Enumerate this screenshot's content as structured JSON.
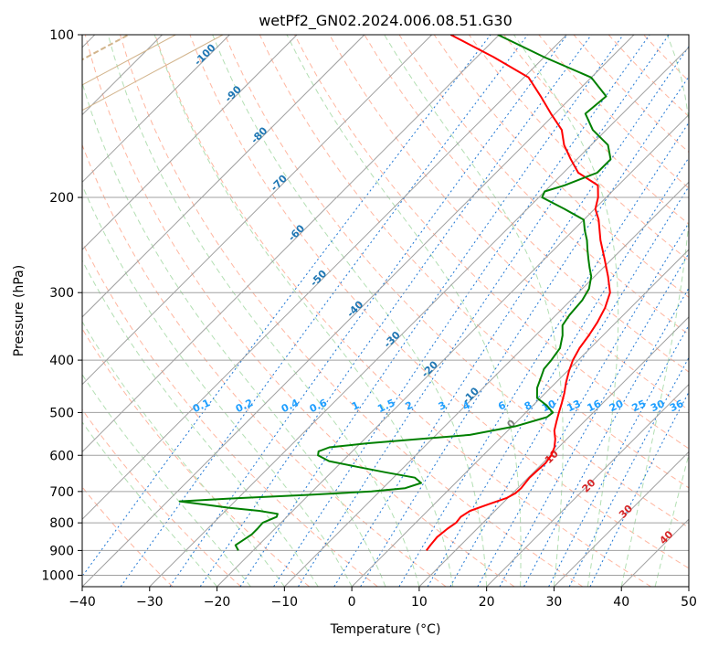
{
  "chart_data": {
    "type": "line",
    "title": "wetPf2_GN02.2024.006.08.51.G30",
    "xlabel": "Temperature (°C)",
    "ylabel": "Pressure (hPa)",
    "xlim": [
      -40,
      50
    ],
    "ylim": [
      1050,
      100
    ],
    "y_scale": "log",
    "skew": true,
    "grid": true,
    "x_ticks": [
      "−40",
      "−30",
      "−20",
      "−10",
      "0",
      "10",
      "20",
      "30",
      "40",
      "50"
    ],
    "y_ticks": [
      "100",
      "200",
      "300",
      "400",
      "500",
      "600",
      "700",
      "800",
      "900",
      "1000"
    ],
    "series": [
      {
        "role": "temperature",
        "color": "#ff0000",
        "points": [
          [
            900,
            5.7
          ],
          [
            880,
            5.5
          ],
          [
            850,
            5.3
          ],
          [
            820,
            5.6
          ],
          [
            800,
            6.0
          ],
          [
            780,
            5.8
          ],
          [
            760,
            6.3
          ],
          [
            740,
            8.0
          ],
          [
            720,
            9.8
          ],
          [
            705,
            10.4
          ],
          [
            690,
            10.5
          ],
          [
            660,
            10.2
          ],
          [
            640,
            10.3
          ],
          [
            620,
            10.4
          ],
          [
            600,
            10.1
          ],
          [
            580,
            9.4
          ],
          [
            560,
            8.3
          ],
          [
            540,
            6.9
          ],
          [
            520,
            5.9
          ],
          [
            500,
            4.9
          ],
          [
            480,
            3.9
          ],
          [
            460,
            2.8
          ],
          [
            440,
            1.5
          ],
          [
            420,
            0.3
          ],
          [
            400,
            -0.8
          ],
          [
            380,
            -1.6
          ],
          [
            360,
            -2.1
          ],
          [
            340,
            -2.8
          ],
          [
            320,
            -3.8
          ],
          [
            300,
            -5.3
          ],
          [
            280,
            -8.0
          ],
          [
            260,
            -11.1
          ],
          [
            240,
            -14.5
          ],
          [
            220,
            -17.8
          ],
          [
            210,
            -19.9
          ],
          [
            200,
            -21.2
          ],
          [
            190,
            -23.0
          ],
          [
            180,
            -27.8
          ],
          [
            170,
            -30.9
          ],
          [
            160,
            -34.0
          ],
          [
            150,
            -36.6
          ],
          [
            140,
            -40.6
          ],
          [
            130,
            -44.7
          ],
          [
            120,
            -49.3
          ],
          [
            110,
            -57.5
          ],
          [
            100,
            -67.2
          ]
        ]
      },
      {
        "role": "dewpoint",
        "color": "#008000",
        "points": [
          [
            900,
            -22.2
          ],
          [
            880,
            -23.4
          ],
          [
            860,
            -23.0
          ],
          [
            840,
            -22.6
          ],
          [
            820,
            -22.6
          ],
          [
            800,
            -22.7
          ],
          [
            780,
            -21.5
          ],
          [
            770,
            -21.8
          ],
          [
            760,
            -25.0
          ],
          [
            750,
            -30.0
          ],
          [
            740,
            -34.0
          ],
          [
            730,
            -38.2
          ],
          [
            720,
            -30.0
          ],
          [
            710,
            -20.0
          ],
          [
            700,
            -11.2
          ],
          [
            690,
            -6.7
          ],
          [
            675,
            -5.1
          ],
          [
            660,
            -6.8
          ],
          [
            645,
            -12.0
          ],
          [
            630,
            -17.0
          ],
          [
            615,
            -22.0
          ],
          [
            600,
            -24.5
          ],
          [
            590,
            -25.0
          ],
          [
            580,
            -24.0
          ],
          [
            570,
            -19.0
          ],
          [
            560,
            -12.0
          ],
          [
            550,
            -5.0
          ],
          [
            530,
            0.5
          ],
          [
            510,
            3.8
          ],
          [
            500,
            4.0
          ],
          [
            485,
            2.0
          ],
          [
            470,
            -0.5
          ],
          [
            450,
            -2.0
          ],
          [
            430,
            -3.0
          ],
          [
            415,
            -3.8
          ],
          [
            400,
            -4.0
          ],
          [
            380,
            -4.5
          ],
          [
            360,
            -6.0
          ],
          [
            345,
            -7.5
          ],
          [
            330,
            -8.0
          ],
          [
            310,
            -8.3
          ],
          [
            295,
            -9.0
          ],
          [
            280,
            -10.5
          ],
          [
            270,
            -12.0
          ],
          [
            260,
            -13.5
          ],
          [
            250,
            -15.0
          ],
          [
            240,
            -16.5
          ],
          [
            230,
            -18.3
          ],
          [
            220,
            -20.0
          ],
          [
            210,
            -24.5
          ],
          [
            200,
            -29.5
          ],
          [
            195,
            -30.0
          ],
          [
            190,
            -28.0
          ],
          [
            180,
            -25.0
          ],
          [
            170,
            -25.0
          ],
          [
            160,
            -27.5
          ],
          [
            150,
            -32.0
          ],
          [
            140,
            -35.5
          ],
          [
            130,
            -35.0
          ],
          [
            120,
            -40.0
          ],
          [
            110,
            -50.0
          ],
          [
            100,
            -60.2
          ]
        ]
      }
    ],
    "isotherm_labels": [
      "-100",
      "-90",
      "-80",
      "-70",
      "-60",
      "-50",
      "-40",
      "-30",
      "-20",
      "-10"
    ],
    "mixing_ratio_labels": [
      "0.1",
      "0.2",
      "0.4",
      "0.6",
      "1",
      "1.5",
      "2",
      "3",
      "4",
      "6",
      "8",
      "10",
      "13",
      "16",
      "20",
      "25",
      "30",
      "36"
    ],
    "mixing_ratio_values": [
      0.1,
      0.2,
      0.4,
      0.6,
      1,
      1.5,
      2,
      3,
      4,
      6,
      8,
      10,
      13,
      16,
      20,
      25,
      30,
      36
    ],
    "mixing_ratio_label_pressure": 500,
    "other_labels": [
      {
        "text": "0",
        "t_skewed": 24.0,
        "p": 530,
        "color": "#808080"
      },
      {
        "text": "10",
        "t_skewed": 30.0,
        "p": 610,
        "color": "#d62728"
      },
      {
        "text": "20",
        "t_skewed": 35.5,
        "p": 690,
        "color": "#d62728"
      },
      {
        "text": "30",
        "t_skewed": 41.0,
        "p": 770,
        "color": "#d62728"
      },
      {
        "text": "40",
        "t_skewed": 47.0,
        "p": 860,
        "color": "#d62728"
      }
    ],
    "colors": {
      "isotherm": "#a0a0a0",
      "isobar": "#a0a0a0",
      "dry_adiabat": "#ffb6a0",
      "moist_adiabat": "#b3dfb3",
      "mixing_ratio": "#1f77d4",
      "isotherm_label": "#1f77b4",
      "mixing_label": "#1f9fff",
      "extra_curve": "#d2b48c"
    }
  }
}
